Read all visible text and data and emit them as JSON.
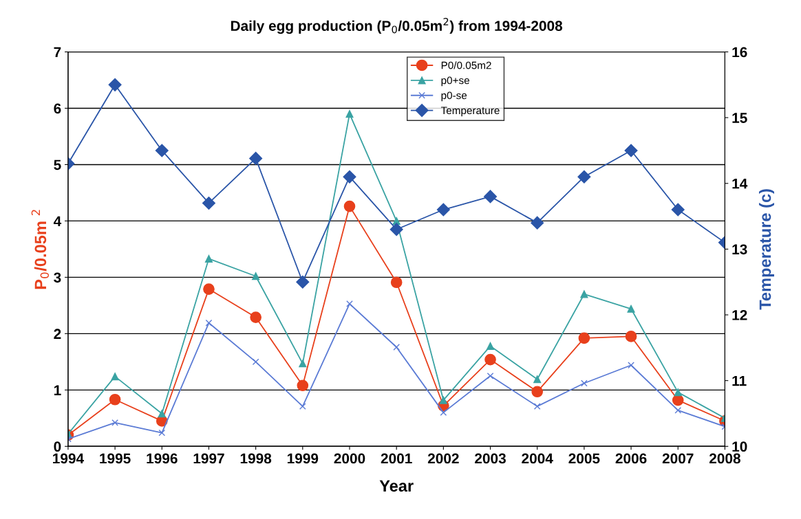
{
  "chart_data": {
    "type": "line",
    "title": "Daily egg production (P$_{0}$/0.05m$^{2}$) from 1994-2008",
    "xlabel": "Year",
    "ylabel": "P$_{0}$/0.05m $^{2}$",
    "y2label": "Temperature (c)",
    "x": [
      1994,
      1995,
      1996,
      1997,
      1998,
      1999,
      2000,
      2001,
      2002,
      2003,
      2004,
      2005,
      2006,
      2007,
      2008
    ],
    "xlim": [
      1994,
      2008
    ],
    "xticks": [
      1994,
      1995,
      1996,
      1997,
      1998,
      1999,
      2000,
      2001,
      2002,
      2003,
      2004,
      2005,
      2006,
      2007,
      2008
    ],
    "ylim": [
      0,
      7
    ],
    "yticks": [
      0,
      1,
      2,
      3,
      4,
      5,
      6,
      7
    ],
    "y2lim": [
      10,
      16
    ],
    "y2ticks": [
      10,
      11,
      12,
      13,
      14,
      15,
      16
    ],
    "grid": "y",
    "legend": "top center",
    "series": [
      {
        "name": "P0/0.05m2",
        "color": "#e8401c",
        "marker": "circle",
        "values": [
          0.2,
          0.83,
          0.45,
          2.79,
          2.29,
          1.08,
          4.26,
          2.91,
          0.72,
          1.54,
          0.97,
          1.92,
          1.95,
          0.82,
          0.45
        ]
      },
      {
        "name": "p0+se",
        "color": "#3aa3a3",
        "marker": "triangle",
        "values": [
          0.22,
          1.24,
          0.58,
          3.33,
          3.02,
          1.47,
          5.9,
          4.0,
          0.82,
          1.78,
          1.19,
          2.7,
          2.44,
          0.96,
          0.5
        ]
      },
      {
        "name": "p0-se",
        "color": "#5b7bd5",
        "marker": "cross",
        "values": [
          0.13,
          0.42,
          0.24,
          2.19,
          1.5,
          0.71,
          2.53,
          1.76,
          0.6,
          1.25,
          0.71,
          1.12,
          1.44,
          0.64,
          0.35
        ]
      },
      {
        "name": "Temperature",
        "color": "#2a55a8",
        "marker": "diamond",
        "axis": "y2",
        "values": [
          14.3,
          15.5,
          14.5,
          13.7,
          14.38,
          12.5,
          14.1,
          13.3,
          13.6,
          13.8,
          13.4,
          14.1,
          14.5,
          13.6,
          13.1
        ]
      }
    ]
  }
}
